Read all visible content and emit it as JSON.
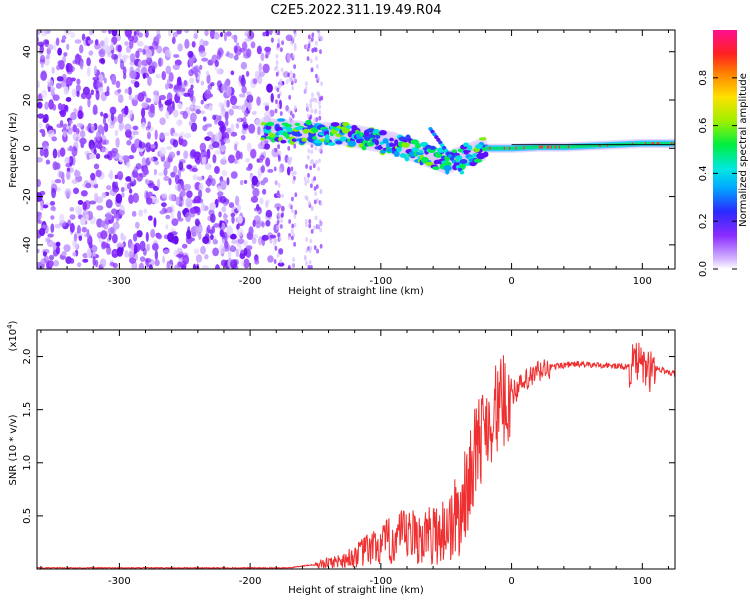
{
  "title": "C2E5.2022.311.19.49.R04",
  "chart_data": [
    {
      "type": "heatmap",
      "ylabel": "Frequency (Hz)",
      "xlabel": "Height of straight line (km)",
      "xlim": [
        -363,
        125
      ],
      "ylim": [
        -50,
        49
      ],
      "xticks": [
        -300,
        -200,
        -100,
        0,
        100
      ],
      "yticks": [
        -40,
        -20,
        0,
        20,
        40
      ],
      "xtick_labels": [
        "-300",
        "-200",
        "-100",
        "0",
        "100"
      ],
      "ytick_labels": [
        "-40",
        "-20",
        "0",
        "20",
        "40"
      ],
      "colorbar": {
        "label": "Normalized spectral amplitude",
        "range": [
          0.0,
          1.0
        ],
        "ticks": [
          0.0,
          0.2,
          0.4,
          0.6,
          0.8
        ],
        "tick_labels": [
          "0.0",
          "0.2",
          "0.4",
          "0.6",
          "0.8"
        ]
      },
      "features": {
        "noise_region_x": [
          -363,
          -185
        ],
        "signal_track": {
          "x": [
            -190,
            -170,
            -150,
            -130,
            -110,
            -90,
            -70,
            -50,
            -35,
            -20,
            0,
            20,
            40,
            60,
            80,
            100,
            125
          ],
          "y": [
            8,
            7,
            6,
            6,
            4,
            2,
            -2,
            -6,
            -3,
            0,
            0,
            0.5,
            0.5,
            1,
            1.5,
            2,
            2
          ]
        }
      }
    },
    {
      "type": "line",
      "ylabel": "SNR (10 * v/v)",
      "scale_label": "(x10",
      "scale_exp": "4",
      "scale_close": ")",
      "xlabel": "Height of straight line (km)",
      "xlim": [
        -363,
        125
      ],
      "ylim": [
        0,
        2.25
      ],
      "xticks": [
        -300,
        -200,
        -100,
        0,
        100
      ],
      "yticks": [
        0.5,
        1.0,
        1.5,
        2.0
      ],
      "xtick_labels": [
        "-300",
        "-200",
        "-100",
        "0",
        "100"
      ],
      "ytick_labels": [
        "0.5",
        "1.0",
        "1.5",
        "2.0"
      ],
      "series": [
        {
          "color": "#f03030",
          "x": [
            -363,
            -300,
            -250,
            -200,
            -170,
            -160,
            -150,
            -140,
            -130,
            -120,
            -110,
            -100,
            -90,
            -80,
            -70,
            -60,
            -50,
            -40,
            -35,
            -30,
            -25,
            -20,
            -15,
            -10,
            -5,
            0,
            10,
            20,
            30,
            40,
            50,
            60,
            70,
            80,
            90,
            95,
            100,
            105,
            110,
            115,
            125
          ],
          "y": [
            0.01,
            0.01,
            0.01,
            0.01,
            0.01,
            0.03,
            0.04,
            0.06,
            0.08,
            0.12,
            0.18,
            0.22,
            0.28,
            0.3,
            0.3,
            0.32,
            0.38,
            0.5,
            0.7,
            1.0,
            1.2,
            1.35,
            1.45,
            1.52,
            1.58,
            1.65,
            1.75,
            1.85,
            1.9,
            1.92,
            1.93,
            1.92,
            1.92,
            1.91,
            1.9,
            1.95,
            1.92,
            1.85,
            1.9,
            1.87,
            1.84
          ]
        }
      ]
    }
  ]
}
